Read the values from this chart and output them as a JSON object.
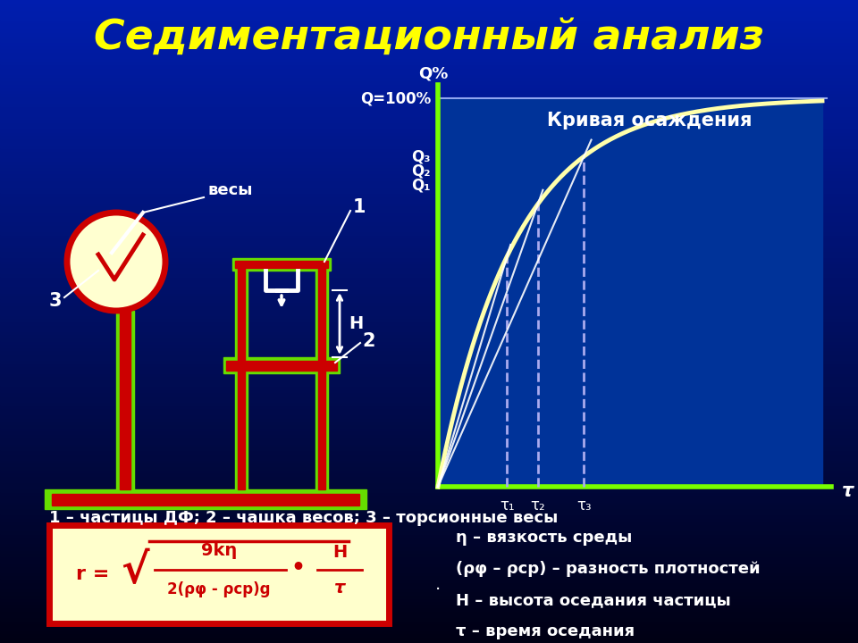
{
  "title": "Седиментационный анализ",
  "title_color": "#FFFF00",
  "graph_title": "Кривая осаждения",
  "graph_ylabel": "Q%",
  "label_100": "Q=100%",
  "label_q3": "Q₃",
  "label_q2": "Q₂",
  "label_q1": "Q₁",
  "tau_labels": [
    "τ₁",
    "τ₂",
    "τ₃"
  ],
  "tau_xlabel": "τ",
  "caption": "1 – частицы ДФ; 2 – чашка весов; 3 – торсионные весы",
  "desc_eta": "η – вязкость среды",
  "desc_rho": "(ρφ – ρср) – разность плотностей",
  "desc_H": "H – высота оседания частицы",
  "desc_tau": "τ – время оседания",
  "label_vesy": "весы",
  "label_1": "1",
  "label_2": "2",
  "label_3": "3",
  "label_H": "H",
  "formula_r": "r =",
  "formula_sqrt": "√",
  "formula_num": "9kη",
  "formula_den": "2(ρφ - ρср)g",
  "formula_dot": "•",
  "formula_Hup": "H",
  "formula_taudn": "τ",
  "bg_top": "#000022",
  "bg_bottom": "#0044bb",
  "green": "#66dd00",
  "red": "#cc0000",
  "curve_color": "#ffffaa",
  "axis_color": "#77ff00",
  "formula_bg": "#ffffcc",
  "formula_border": "#cc0000"
}
